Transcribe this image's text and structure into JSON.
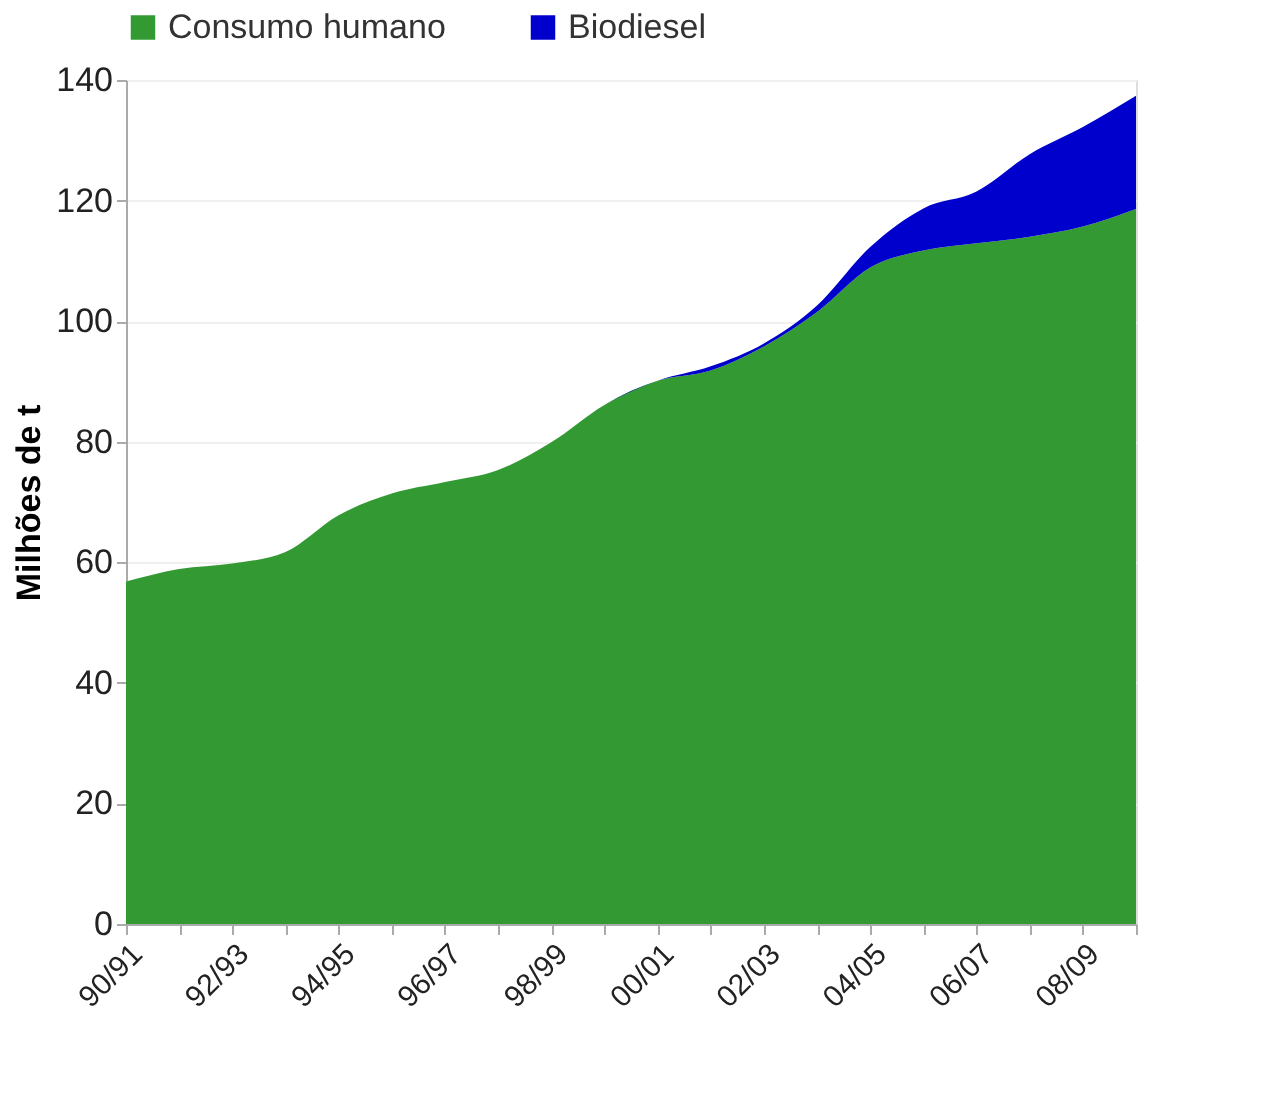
{
  "chart_data": {
    "type": "area",
    "stacked": true,
    "ylabel": "Milhões de t",
    "categories": [
      "90/91",
      null,
      "92/93",
      null,
      "94/95",
      null,
      "96/97",
      null,
      "98/99",
      null,
      "00/01",
      null,
      "02/03",
      null,
      "04/05",
      null,
      "06/07",
      null,
      "08/09",
      null
    ],
    "series": [
      {
        "name": "Consumo humano",
        "color": "#339933",
        "values": [
          56.8,
          58.9,
          59.8,
          61.7,
          67.8,
          71.4,
          73.3,
          75.3,
          79.9,
          86.1,
          90.1,
          91.8,
          95.8,
          101.5,
          108.9,
          111.7,
          112.9,
          114,
          115.7,
          118.6
        ]
      },
      {
        "name": "Biodiesel",
        "color": "#0000cc",
        "values": [
          0,
          0,
          0,
          0,
          0,
          0,
          0,
          0,
          0,
          0,
          0,
          0.7,
          0.5,
          1.1,
          3.4,
          7,
          8.6,
          13.7,
          16.5,
          18.8
        ]
      }
    ],
    "ylim": [
      0,
      140
    ],
    "yticks": [
      0,
      20,
      40,
      60,
      80,
      100,
      120,
      140
    ],
    "grid": "y",
    "legend": "top"
  }
}
